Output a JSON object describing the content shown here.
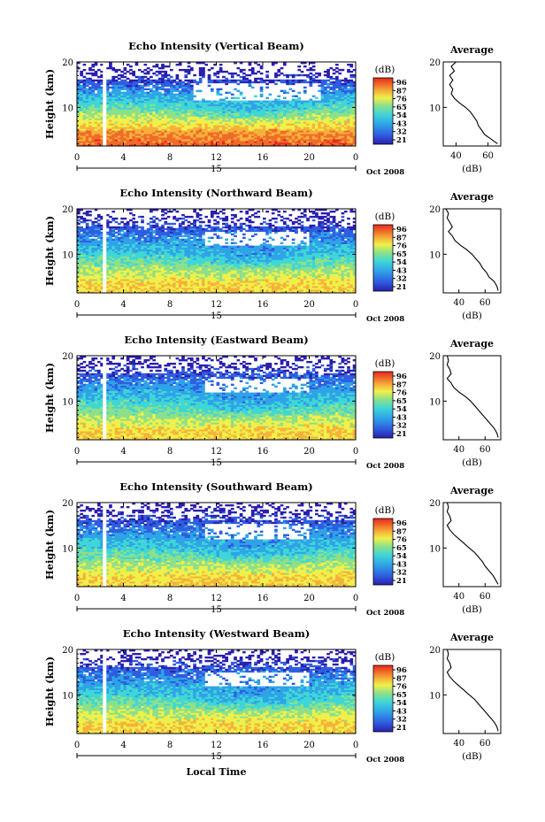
{
  "chart_data": [
    {
      "type": "heatmap",
      "title": "Echo Intensity (Vertical Beam)",
      "ylabel": "Height (km)",
      "xticks": [
        "0",
        "4",
        "8",
        "12",
        "16",
        "20",
        "0"
      ],
      "yticks": [
        "20",
        "10"
      ],
      "date_day": "15",
      "date_label": "Oct 2008",
      "xlim": [
        0,
        24
      ],
      "ylim": [
        1.5,
        20
      ],
      "colorbar_unit": "(dB)",
      "colorbar_ticks": [
        "96",
        "87",
        "76",
        "65",
        "54",
        "43",
        "32",
        "21"
      ],
      "data_gap_hour": 2,
      "clear_zone": {
        "hours": [
          10,
          21
        ],
        "height_km": [
          11.5,
          15.5
        ]
      },
      "profile": {
        "title": "Average",
        "xlabel": "(dB)",
        "xticks": [
          "40",
          "60"
        ],
        "xlim": [
          32,
          68
        ],
        "heights": [
          2,
          3,
          4,
          5,
          6,
          7,
          8,
          9,
          10,
          11,
          12,
          13,
          14,
          15,
          16,
          17,
          18,
          19,
          20
        ],
        "values": [
          66,
          62,
          58,
          56,
          54,
          53,
          51,
          49,
          46,
          42,
          39,
          37,
          38,
          36,
          38,
          36,
          39,
          37,
          40
        ]
      }
    },
    {
      "type": "heatmap",
      "title": "Echo Intensity (Northward Beam)",
      "ylabel": "Height (km)",
      "xticks": [
        "0",
        "4",
        "8",
        "12",
        "16",
        "20",
        "0"
      ],
      "yticks": [
        "20",
        "10"
      ],
      "date_day": "15",
      "date_label": "Oct 2008",
      "xlim": [
        0,
        24
      ],
      "ylim": [
        1.5,
        20
      ],
      "colorbar_unit": "(dB)",
      "colorbar_ticks": [
        "96",
        "87",
        "76",
        "65",
        "54",
        "43",
        "32",
        "21"
      ],
      "data_gap_hour": 2,
      "clear_zone": {
        "hours": [
          11,
          20
        ],
        "height_km": [
          12,
          15
        ]
      },
      "profile": {
        "title": "Average",
        "xlabel": "(dB)",
        "xticks": [
          "40",
          "60"
        ],
        "xlim": [
          28,
          72
        ],
        "heights": [
          2,
          3,
          4,
          5,
          6,
          7,
          8,
          9,
          10,
          11,
          12,
          13,
          14,
          15,
          16,
          17,
          18,
          19,
          20
        ],
        "values": [
          70,
          69,
          67,
          63,
          61,
          58,
          56,
          53,
          50,
          46,
          41,
          37,
          35,
          32,
          35,
          33,
          31,
          32,
          30
        ]
      }
    },
    {
      "type": "heatmap",
      "title": "Echo Intensity (Eastward Beam)",
      "ylabel": "Height (km)",
      "xticks": [
        "0",
        "4",
        "8",
        "12",
        "16",
        "20",
        "0"
      ],
      "yticks": [
        "20",
        "10"
      ],
      "date_day": "15",
      "date_label": "Oct 2008",
      "xlim": [
        0,
        24
      ],
      "ylim": [
        1.5,
        20
      ],
      "colorbar_unit": "(dB)",
      "colorbar_ticks": [
        "96",
        "87",
        "76",
        "65",
        "54",
        "43",
        "32",
        "21"
      ],
      "data_gap_hour": 2,
      "clear_zone": {
        "hours": [
          11,
          20
        ],
        "height_km": [
          12,
          15
        ]
      },
      "profile": {
        "title": "Average",
        "xlabel": "(dB)",
        "xticks": [
          "40",
          "60"
        ],
        "xlim": [
          28,
          72
        ],
        "heights": [
          2,
          3,
          4,
          5,
          6,
          7,
          8,
          9,
          10,
          11,
          12,
          13,
          14,
          15,
          16,
          17,
          18,
          19,
          20
        ],
        "values": [
          70,
          69,
          67,
          64,
          61,
          58,
          55,
          52,
          49,
          45,
          40,
          36,
          34,
          31,
          34,
          33,
          31,
          32,
          31
        ]
      }
    },
    {
      "type": "heatmap",
      "title": "Echo Intensity (Southward Beam)",
      "ylabel": "Height (km)",
      "xticks": [
        "0",
        "4",
        "8",
        "12",
        "16",
        "20",
        "0"
      ],
      "yticks": [
        "20",
        "10"
      ],
      "date_day": "15",
      "date_label": "Oct 2008",
      "xlim": [
        0,
        24
      ],
      "ylim": [
        1.5,
        20
      ],
      "colorbar_unit": "(dB)",
      "colorbar_ticks": [
        "96",
        "87",
        "76",
        "65",
        "54",
        "43",
        "32",
        "21"
      ],
      "data_gap_hour": 2,
      "clear_zone": {
        "hours": [
          11,
          20
        ],
        "height_km": [
          12,
          15.5
        ]
      },
      "profile": {
        "title": "Average",
        "xlabel": "(dB)",
        "xticks": [
          "40",
          "60"
        ],
        "xlim": [
          28,
          72
        ],
        "heights": [
          2,
          3,
          4,
          5,
          6,
          7,
          8,
          9,
          10,
          11,
          12,
          13,
          14,
          15,
          16,
          17,
          18,
          19,
          20
        ],
        "values": [
          70,
          68,
          66,
          63,
          60,
          58,
          55,
          52,
          48,
          44,
          40,
          36,
          33,
          31,
          34,
          33,
          31,
          32,
          31
        ]
      }
    },
    {
      "type": "heatmap",
      "title": "Echo Intensity (Westward Beam)",
      "ylabel": "Height (km)",
      "xticks": [
        "0",
        "4",
        "8",
        "12",
        "16",
        "20",
        "0"
      ],
      "yticks": [
        "20",
        "10"
      ],
      "date_day": "15",
      "date_label": "Oct 2008",
      "xlabel": "Local Time",
      "xlim": [
        0,
        24
      ],
      "ylim": [
        1.5,
        20
      ],
      "colorbar_unit": "(dB)",
      "colorbar_ticks": [
        "96",
        "87",
        "76",
        "65",
        "54",
        "43",
        "32",
        "21"
      ],
      "data_gap_hour": 2,
      "clear_zone": {
        "hours": [
          11,
          20
        ],
        "height_km": [
          12,
          15
        ]
      },
      "profile": {
        "title": "Average",
        "xlabel": "(dB)",
        "xticks": [
          "40",
          "60"
        ],
        "xlim": [
          28,
          72
        ],
        "heights": [
          2,
          3,
          4,
          5,
          6,
          7,
          8,
          9,
          10,
          11,
          12,
          13,
          14,
          15,
          16,
          17,
          18,
          19,
          20
        ],
        "values": [
          70,
          69,
          67,
          64,
          61,
          58,
          55,
          52,
          48,
          44,
          40,
          36,
          33,
          31,
          34,
          33,
          31,
          32,
          31
        ]
      }
    }
  ],
  "colors": {
    "scale": [
      "#2a1fae",
      "#2f5ee0",
      "#2fa3e8",
      "#3fd6d6",
      "#8de08a",
      "#f0f04a",
      "#f5b23a",
      "#f06b2a",
      "#e8281e"
    ],
    "axis": "#000000",
    "background": "#ffffff"
  }
}
